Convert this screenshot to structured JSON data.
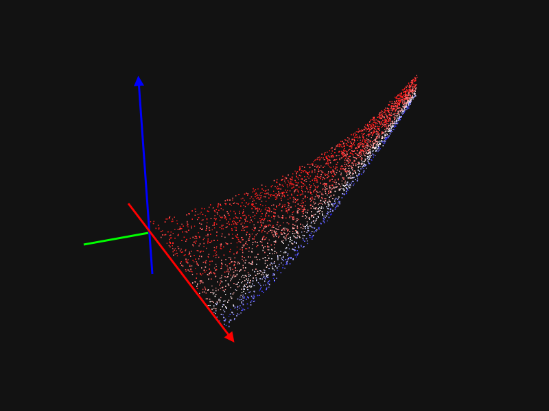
{
  "viewer": {
    "background_color": "#121212",
    "colormap": [
      "#2020ff",
      "#ffffff",
      "#ff1a1a"
    ]
  },
  "axes": [
    {
      "name": "x-axis",
      "color": "#ff0000",
      "icon": "arrow"
    },
    {
      "name": "y-axis",
      "color": "#00ff00",
      "icon": "line"
    },
    {
      "name": "z-axis",
      "color": "#0000ff",
      "icon": "arrow"
    }
  ],
  "point_cloud": {
    "shape": "curved-sheet",
    "color_by": "depth"
  }
}
